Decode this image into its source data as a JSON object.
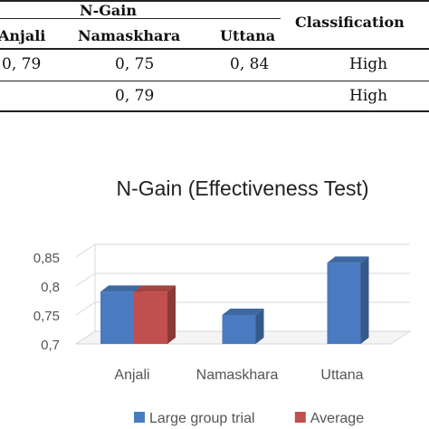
{
  "table": {
    "header": {
      "group": "N-Gain",
      "columns": [
        "Anjali",
        "Namaskhara",
        "Uttana"
      ],
      "classification": "Classification"
    },
    "rows": [
      {
        "cells": [
          "0, 79",
          "0, 75",
          "0, 84"
        ],
        "classification": "High"
      },
      {
        "average": "0, 79",
        "classification": "High"
      }
    ]
  },
  "chart_data": {
    "type": "bar",
    "title": "N-Gain (Effectiveness Test)",
    "categories": [
      "Anjali",
      "Namaskhara",
      "Uttana"
    ],
    "series": [
      {
        "name": "Large group trial",
        "values": [
          0.79,
          0.75,
          0.84
        ],
        "color": "#4a7bc0"
      },
      {
        "name": "Average",
        "values": [
          0.79,
          null,
          null
        ],
        "color": "#c0504d"
      }
    ],
    "ylim": [
      0.7,
      0.85
    ],
    "yticks": [
      0.7,
      0.75,
      0.8,
      0.85
    ],
    "ytick_labels": [
      "0,7",
      "0,75",
      "0,8",
      "0,85"
    ],
    "legend": "bottom",
    "grid": false,
    "style": "3d-column"
  }
}
